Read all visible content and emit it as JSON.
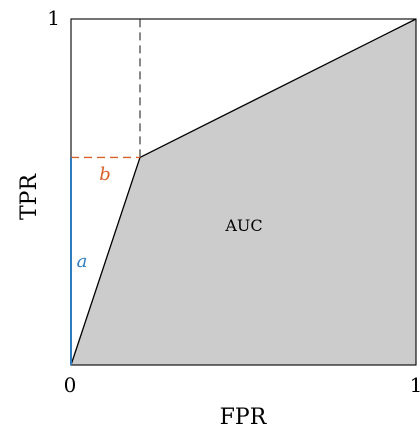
{
  "figure": {
    "xlabel": "FPR",
    "ylabel": "TPR",
    "x_ticks": [
      "0",
      "1"
    ],
    "y_ticks": [
      "1"
    ],
    "area_label": "AUC",
    "segment_a_label": "a",
    "segment_b_label": "b"
  },
  "chart_data": {
    "type": "area",
    "xlabel": "FPR",
    "ylabel": "TPR",
    "xlim": [
      0,
      1
    ],
    "ylim": [
      0,
      1
    ],
    "roc_points": [
      {
        "x": 0,
        "y": 0
      },
      {
        "x": 0.2,
        "y": 0.6
      },
      {
        "x": 1,
        "y": 1
      }
    ],
    "operating_point": {
      "x": 0.2,
      "y": 0.6
    },
    "colors": {
      "area_fill": "#cccccc",
      "segment_a": "#2e7cbf",
      "segment_b": "#d9622b",
      "guide": "#555555",
      "axes": "#000000"
    }
  }
}
